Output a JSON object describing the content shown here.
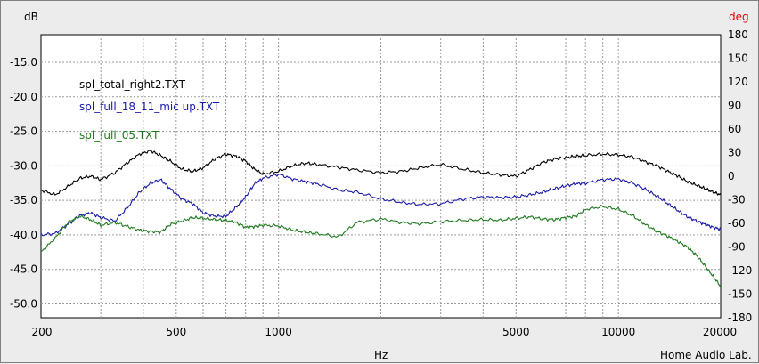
{
  "chart_data": {
    "type": "line",
    "title": "",
    "xlabel": "Hz",
    "ylabel": "dB",
    "y2label": "deg",
    "credit": "Home Audio Lab.",
    "xscale": "log",
    "xlim": [
      200,
      20000
    ],
    "ylim": [
      -52,
      -11
    ],
    "y2lim": [
      -180,
      180
    ],
    "grid": true,
    "legend_position": "top-left",
    "x_ticks": [
      200,
      500,
      1000,
      5000,
      10000,
      20000
    ],
    "x_tick_labels": [
      "200",
      "500",
      "1000",
      "5000",
      "10000",
      "20000"
    ],
    "y_ticks": [
      -15,
      -20,
      -25,
      -30,
      -35,
      -40,
      -45,
      -50
    ],
    "y_tick_labels": [
      "-15.0",
      "-20.0",
      "-25.0",
      "-30.0",
      "-35.0",
      "-40.0",
      "-45.0",
      "-50.0"
    ],
    "y2_ticks": [
      180,
      150,
      120,
      90,
      60,
      30,
      0,
      -30,
      -60,
      -90,
      -120,
      -150,
      -180
    ],
    "y2_tick_labels": [
      "180",
      "150",
      "120",
      "90",
      "60",
      "30",
      "0",
      "-30",
      "-60",
      "-90",
      "-120",
      "-150",
      "-180"
    ],
    "series": [
      {
        "name": "spl_total_right2.TXT",
        "color": "#000000",
        "x": [
          200,
          220,
          240,
          260,
          280,
          300,
          330,
          360,
          390,
          420,
          450,
          480,
          520,
          560,
          600,
          650,
          700,
          750,
          800,
          850,
          900,
          1000,
          1100,
          1200,
          1300,
          1500,
          1700,
          2000,
          2300,
          2600,
          3000,
          3500,
          4000,
          4500,
          5000,
          5500,
          6000,
          6500,
          7000,
          7500,
          8000,
          9000,
          10000,
          11000,
          12000,
          13000,
          14000,
          15000,
          16000,
          17000,
          18000,
          19000,
          20000
        ],
        "y": [
          -33.5,
          -34.2,
          -33.0,
          -31.8,
          -31.5,
          -32.0,
          -31.0,
          -29.5,
          -28.3,
          -27.8,
          -28.5,
          -29.3,
          -30.5,
          -30.8,
          -30.3,
          -29.0,
          -28.3,
          -28.6,
          -29.3,
          -30.5,
          -31.2,
          -30.8,
          -30.0,
          -29.6,
          -29.8,
          -30.2,
          -30.6,
          -31.0,
          -30.8,
          -30.3,
          -29.8,
          -30.5,
          -31.0,
          -31.3,
          -31.5,
          -30.5,
          -29.5,
          -29.0,
          -28.8,
          -28.6,
          -28.5,
          -28.3,
          -28.4,
          -28.7,
          -29.4,
          -30.0,
          -30.8,
          -31.5,
          -32.3,
          -32.8,
          -33.3,
          -33.8,
          -34.2
        ]
      },
      {
        "name": "spl_full_18_11_mic up.TXT",
        "color": "#1a1aa8",
        "x": [
          200,
          220,
          240,
          260,
          280,
          300,
          330,
          360,
          390,
          420,
          450,
          480,
          520,
          560,
          600,
          650,
          700,
          750,
          800,
          850,
          900,
          1000,
          1100,
          1200,
          1300,
          1500,
          1700,
          2000,
          2300,
          2600,
          3000,
          3500,
          4000,
          4500,
          5000,
          5500,
          6000,
          6500,
          7000,
          7500,
          8000,
          9000,
          10000,
          11000,
          12000,
          13000,
          14000,
          15000,
          16000,
          17000,
          18000,
          19000,
          20000
        ],
        "y": [
          -40.0,
          -39.8,
          -38.5,
          -37.2,
          -36.8,
          -37.5,
          -38.0,
          -36.0,
          -33.8,
          -32.5,
          -32.0,
          -33.3,
          -34.8,
          -35.5,
          -36.8,
          -37.3,
          -37.3,
          -36.0,
          -34.5,
          -32.6,
          -31.8,
          -31.2,
          -31.9,
          -32.3,
          -32.6,
          -33.5,
          -33.8,
          -34.8,
          -35.3,
          -35.6,
          -35.5,
          -34.8,
          -34.5,
          -34.6,
          -34.5,
          -34.2,
          -33.8,
          -33.3,
          -32.9,
          -32.6,
          -32.5,
          -32.0,
          -31.9,
          -32.5,
          -33.4,
          -34.4,
          -35.5,
          -36.5,
          -37.4,
          -38.0,
          -38.5,
          -38.9,
          -39.2
        ]
      },
      {
        "name": "spl_full_05.TXT",
        "color": "#1d7a1d",
        "x": [
          200,
          220,
          240,
          260,
          280,
          300,
          330,
          360,
          390,
          420,
          450,
          480,
          520,
          560,
          600,
          650,
          700,
          750,
          800,
          850,
          900,
          1000,
          1100,
          1200,
          1300,
          1500,
          1700,
          2000,
          2300,
          2600,
          3000,
          3500,
          4000,
          4500,
          5000,
          5500,
          6000,
          6500,
          7000,
          7500,
          8000,
          9000,
          10000,
          11000,
          12000,
          13000,
          14000,
          15000,
          16000,
          17000,
          18000,
          19000,
          20000
        ],
        "y": [
          -42.5,
          -40.5,
          -38.2,
          -37.3,
          -37.8,
          -38.6,
          -38.2,
          -38.8,
          -39.3,
          -39.5,
          -39.6,
          -38.5,
          -38.0,
          -37.5,
          -37.6,
          -37.8,
          -37.9,
          -38.2,
          -38.9,
          -38.8,
          -38.6,
          -38.7,
          -39.3,
          -39.6,
          -39.8,
          -40.3,
          -38.2,
          -37.7,
          -38.2,
          -38.4,
          -38.1,
          -37.9,
          -37.8,
          -37.9,
          -37.6,
          -37.4,
          -37.7,
          -37.8,
          -37.5,
          -37.3,
          -36.3,
          -35.9,
          -36.3,
          -37.2,
          -38.5,
          -39.5,
          -40.2,
          -41.0,
          -41.8,
          -43.0,
          -44.5,
          -46.0,
          -47.5
        ]
      }
    ]
  }
}
